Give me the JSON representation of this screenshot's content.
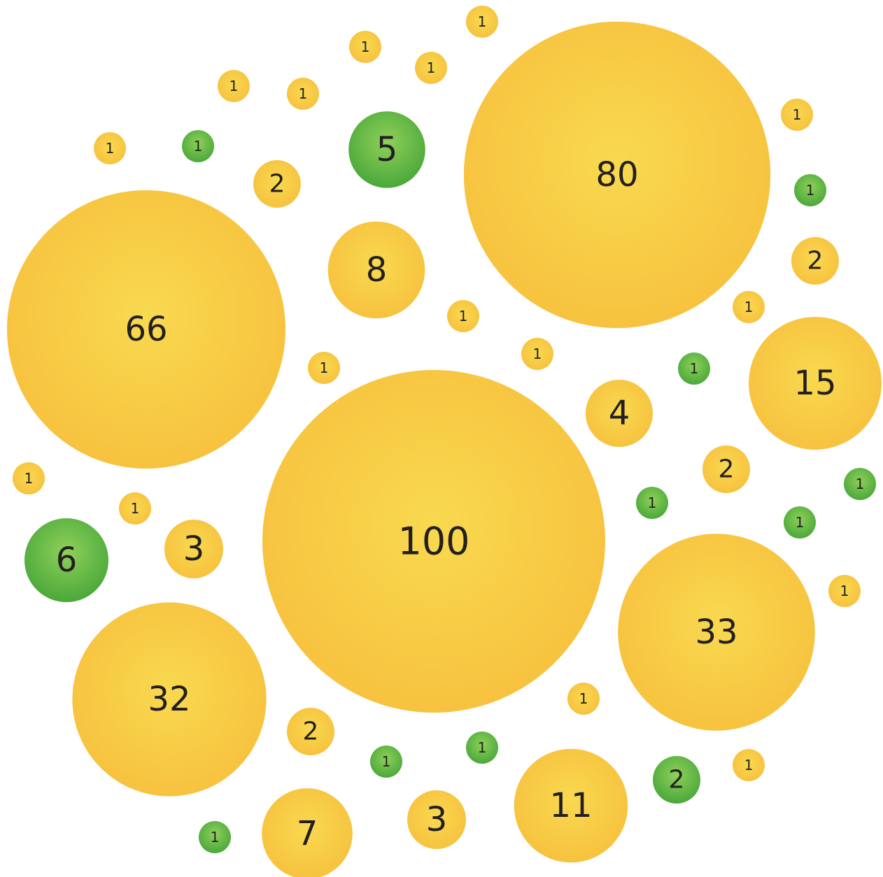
{
  "chart_data": {
    "type": "bubble",
    "colors": {
      "yellow": {
        "center": "#f8d94f",
        "edge": "#f7c23f"
      },
      "green": {
        "center": "#8fd05a",
        "edge": "#4aa83a"
      }
    },
    "bubbles": [
      {
        "value": 1,
        "color": "yellow"
      },
      {
        "value": 1,
        "color": "yellow"
      },
      {
        "value": 1,
        "color": "yellow"
      },
      {
        "value": 1,
        "color": "yellow"
      },
      {
        "value": 1,
        "color": "yellow"
      },
      {
        "value": 1,
        "color": "yellow"
      },
      {
        "value": 1,
        "color": "green"
      },
      {
        "value": 5,
        "color": "green"
      },
      {
        "value": 2,
        "color": "yellow"
      },
      {
        "value": 80,
        "color": "yellow"
      },
      {
        "value": 1,
        "color": "yellow"
      },
      {
        "value": 1,
        "color": "green"
      },
      {
        "value": 2,
        "color": "yellow"
      },
      {
        "value": 8,
        "color": "yellow"
      },
      {
        "value": 66,
        "color": "yellow"
      },
      {
        "value": 1,
        "color": "yellow"
      },
      {
        "value": 1,
        "color": "yellow"
      },
      {
        "value": 1,
        "color": "yellow"
      },
      {
        "value": 1,
        "color": "yellow"
      },
      {
        "value": 1,
        "color": "green"
      },
      {
        "value": 15,
        "color": "yellow"
      },
      {
        "value": 4,
        "color": "yellow"
      },
      {
        "value": 100,
        "color": "yellow"
      },
      {
        "value": 2,
        "color": "yellow"
      },
      {
        "value": 1,
        "color": "yellow"
      },
      {
        "value": 1,
        "color": "yellow"
      },
      {
        "value": 1,
        "color": "green"
      },
      {
        "value": 1,
        "color": "green"
      },
      {
        "value": 1,
        "color": "green"
      },
      {
        "value": 6,
        "color": "green"
      },
      {
        "value": 3,
        "color": "yellow"
      },
      {
        "value": 33,
        "color": "yellow"
      },
      {
        "value": 1,
        "color": "yellow"
      },
      {
        "value": 32,
        "color": "yellow"
      },
      {
        "value": 1,
        "color": "yellow"
      },
      {
        "value": 2,
        "color": "yellow"
      },
      {
        "value": 1,
        "color": "green"
      },
      {
        "value": 1,
        "color": "green"
      },
      {
        "value": 11,
        "color": "yellow"
      },
      {
        "value": 2,
        "color": "green"
      },
      {
        "value": 1,
        "color": "yellow"
      },
      {
        "value": 1,
        "color": "green"
      },
      {
        "value": 7,
        "color": "yellow"
      },
      {
        "value": 3,
        "color": "yellow"
      }
    ]
  }
}
